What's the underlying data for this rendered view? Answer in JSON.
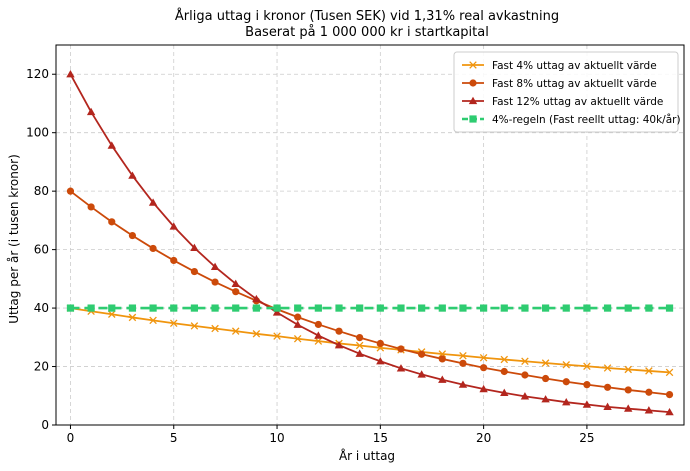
{
  "chart_data": {
    "type": "line",
    "title": "Årliga uttag i kronor (Tusen SEK) vid 1,31% real avkastning",
    "subtitle": "Baserat på 1 000 000 kr i startkapital",
    "xlabel": "År i uttag",
    "ylabel": "Uttag per år (i tusen kronor)",
    "xlim": [
      -0.7,
      29.7
    ],
    "ylim": [
      0,
      130
    ],
    "xticks": [
      0,
      5,
      10,
      15,
      20,
      25
    ],
    "yticks": [
      0,
      20,
      40,
      60,
      80,
      100,
      120
    ],
    "grid": true,
    "legend_position": "top-right",
    "x": [
      0,
      1,
      2,
      3,
      4,
      5,
      6,
      7,
      8,
      9,
      10,
      11,
      12,
      13,
      14,
      15,
      16,
      17,
      18,
      19,
      20,
      21,
      22,
      23,
      24,
      25,
      26,
      27,
      28,
      29
    ],
    "series": [
      {
        "name": "Fast 4% uttag av aktuellt värde",
        "color": "#f0950e",
        "marker": "x",
        "dashed": false,
        "values": [
          40.0,
          38.9,
          37.9,
          36.8,
          35.8,
          34.8,
          33.9,
          33.0,
          32.1,
          31.2,
          30.4,
          29.5,
          28.7,
          27.9,
          27.2,
          26.4,
          25.7,
          25.0,
          24.3,
          23.7,
          23.0,
          22.4,
          21.8,
          21.2,
          20.6,
          20.1,
          19.5,
          19.0,
          18.5,
          18.0
        ]
      },
      {
        "name": "Fast 8% uttag av aktuellt värde",
        "color": "#cc4a0a",
        "marker": "circle",
        "dashed": false,
        "values": [
          80.0,
          74.6,
          69.5,
          64.8,
          60.4,
          56.3,
          52.5,
          48.9,
          45.6,
          42.5,
          39.6,
          36.9,
          34.4,
          32.1,
          29.9,
          27.9,
          26.0,
          24.2,
          22.6,
          21.1,
          19.6,
          18.3,
          17.1,
          15.9,
          14.8,
          13.8,
          12.9,
          12.0,
          11.2,
          10.4
        ]
      },
      {
        "name": "Fast 12% uttag av aktuellt värde",
        "color": "#b3261e",
        "marker": "triangle",
        "dashed": false,
        "values": [
          120.0,
          107.1,
          95.6,
          85.3,
          76.1,
          67.9,
          60.6,
          54.1,
          48.3,
          43.1,
          38.5,
          34.3,
          30.6,
          27.3,
          24.4,
          21.8,
          19.4,
          17.3,
          15.5,
          13.8,
          12.3,
          11.0,
          9.8,
          8.8,
          7.8,
          7.0,
          6.2,
          5.6,
          5.0,
          4.4
        ]
      },
      {
        "name": "4%-regeln (Fast reellt uttag: 40k/år)",
        "color": "#2ecc71",
        "marker": "square",
        "dashed": true,
        "values": [
          40,
          40,
          40,
          40,
          40,
          40,
          40,
          40,
          40,
          40,
          40,
          40,
          40,
          40,
          40,
          40,
          40,
          40,
          40,
          40,
          40,
          40,
          40,
          40,
          40,
          40,
          40,
          40,
          40,
          40
        ]
      }
    ]
  }
}
